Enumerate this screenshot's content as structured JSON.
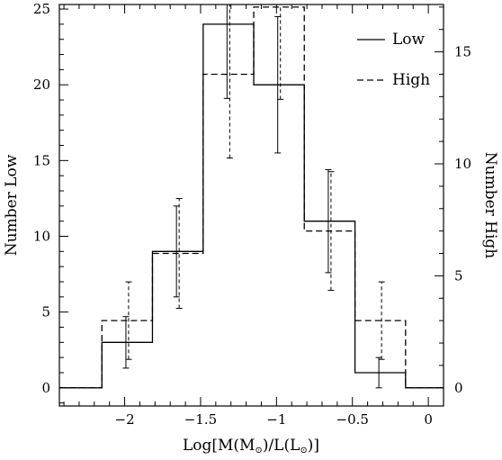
{
  "chart_data": {
    "type": "histogram-step",
    "xlabel_parts": [
      "Log[M(M",
      "⊙",
      ")/L(L",
      "⊙",
      ")]"
    ],
    "ylabel_left": "Number Low",
    "ylabel_right": "Number High",
    "xlim": [
      -2.43,
      0.1
    ],
    "ylim_left": [
      -1.2,
      25.3
    ],
    "ylim_right": [
      -0.8117,
      17.1143
    ],
    "x_ticks": [
      -2,
      -1.5,
      -1,
      -0.5,
      0
    ],
    "x_tick_labels": [
      "−2",
      "−1.5",
      "−1",
      "−0.5",
      "0"
    ],
    "y_left_ticks": [
      0,
      5,
      10,
      15,
      20,
      25
    ],
    "y_left_tick_labels": [
      "0",
      "5",
      "10",
      "15",
      "20",
      "25"
    ],
    "y_right_ticks": [
      0,
      5,
      10,
      15
    ],
    "y_right_tick_labels": [
      "0",
      "5",
      "10",
      "15"
    ],
    "legend_position": "top-right",
    "series": [
      {
        "name": "Low",
        "style": "solid",
        "axis": "left",
        "edges": [
          -2.43,
          -2.15,
          -1.817,
          -1.483,
          -1.15,
          -0.817,
          -0.483,
          -0.15,
          0.1
        ],
        "values": [
          0,
          3,
          9,
          24,
          20,
          11,
          1,
          0
        ],
        "error_x": [
          -1.983,
          -1.65,
          -1.317,
          -0.983,
          -0.65,
          -0.317
        ],
        "error_low": [
          1.3,
          6.0,
          19.1,
          15.5,
          7.6,
          0.0
        ],
        "error_high": [
          4.7,
          12.0,
          28.9,
          24.5,
          14.4,
          2.0
        ]
      },
      {
        "name": "High",
        "style": "dashed",
        "axis": "right",
        "edges": [
          -2.43,
          -2.15,
          -1.817,
          -1.483,
          -1.15,
          -0.817,
          -0.483,
          -0.15,
          0.1
        ],
        "values": [
          0,
          3,
          6,
          14,
          17,
          7,
          3,
          0
        ],
        "error_x": [
          -1.983,
          -1.65,
          -1.317,
          -0.983,
          -0.65,
          -0.317
        ],
        "error_low": [
          1.27,
          3.55,
          10.26,
          12.88,
          4.35,
          1.27
        ],
        "error_high": [
          4.73,
          8.45,
          17.74,
          21.12,
          9.65,
          4.73
        ]
      }
    ]
  }
}
